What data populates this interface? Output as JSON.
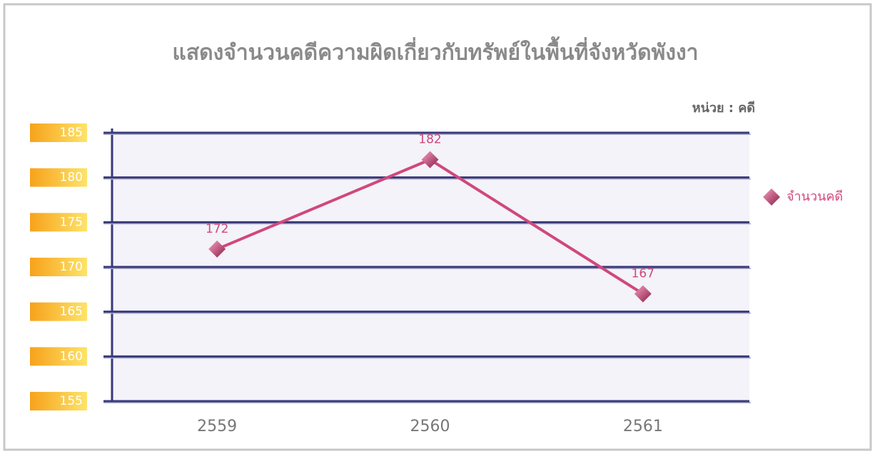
{
  "chart_data": {
    "type": "line",
    "title": "แสดงจำนวนคดีความผิดเกี่ยวกับทรัพย์ในพื้นที่จังหวัดพังงา",
    "unit_label": "หน่วย : คดี",
    "categories": [
      "2559",
      "2560",
      "2561"
    ],
    "series": [
      {
        "name": "จำนวนคดี",
        "color": "#d0487c",
        "values": [
          172,
          182,
          167
        ]
      }
    ],
    "ylim": [
      155,
      185
    ],
    "yticks": [
      155,
      160,
      165,
      170,
      175,
      180,
      185
    ],
    "grid": true,
    "legend": "right"
  }
}
